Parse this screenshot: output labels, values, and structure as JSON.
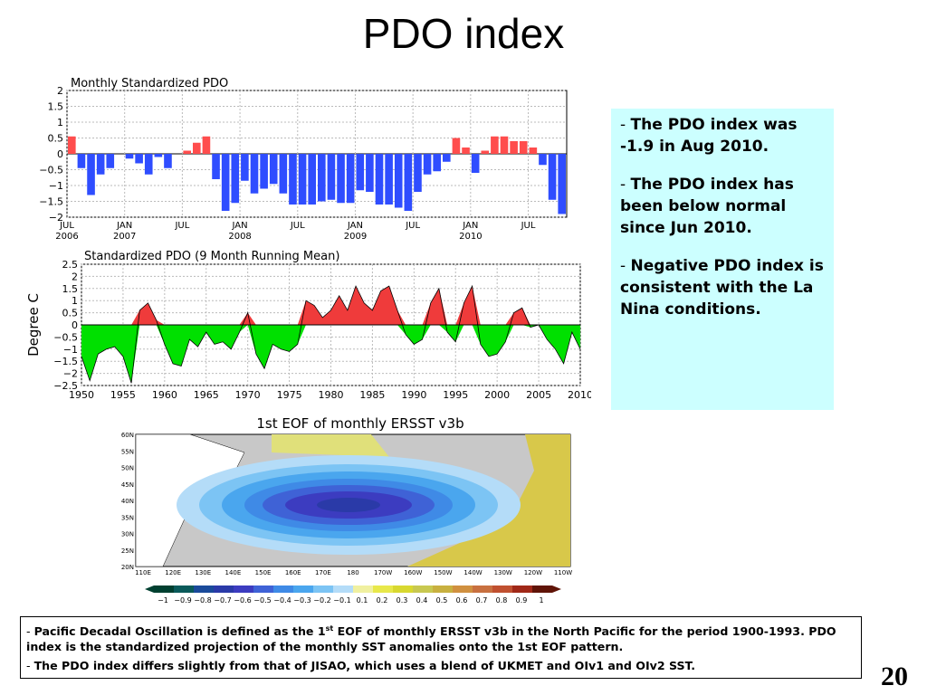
{
  "slide": {
    "title": "PDO index",
    "page_number": "20"
  },
  "info": {
    "items": [
      "The PDO index was -1.9 in Aug 2010.",
      "The PDO index has been below normal since Jun 2010.",
      "Negative PDO index is consistent with the La Nina conditions."
    ]
  },
  "footer": {
    "line1_pre": "Pacific Decadal Oscillation is defined as the 1",
    "line1_sup": "st",
    "line1_post": " EOF of monthly ERSST v3b in the North Pacific for the period 1900-1993. PDO index is the standardized projection of the monthly SST anomalies onto  the 1st EOF pattern.",
    "line2": "The PDO index differs slightly from that of JISAO, which uses a blend of UKMET and OIv1 and OIv2 SST."
  },
  "colors": {
    "positive": "#ff4d4d",
    "negative": "#2f4dff",
    "positive_fill": "#ef3b3b",
    "negative_fill": "#00e000",
    "box_bg": "#ccffff"
  },
  "chart_data": [
    {
      "type": "bar",
      "title": "Monthly Standardized PDO",
      "ylim": [
        -2,
        2
      ],
      "yticks": [
        "2",
        "1.5",
        "1",
        "0.5",
        "0",
        "−0.5",
        "−1",
        "−1.5",
        "−2"
      ],
      "xtick_labels": [
        {
          "month": "JUL",
          "year": "2006"
        },
        {
          "month": "JAN",
          "year": "2007"
        },
        {
          "month": "JUL",
          "year": ""
        },
        {
          "month": "JAN",
          "year": "2008"
        },
        {
          "month": "JUL",
          "year": ""
        },
        {
          "month": "JAN",
          "year": "2009"
        },
        {
          "month": "JUL",
          "year": ""
        },
        {
          "month": "JAN",
          "year": "2010"
        },
        {
          "month": "JUL",
          "year": ""
        }
      ],
      "values": [
        0.55,
        -0.45,
        -1.3,
        -0.65,
        -0.45,
        0,
        -0.15,
        -0.3,
        -0.65,
        -0.1,
        -0.45,
        0,
        0.1,
        0.35,
        0.55,
        -0.8,
        -1.8,
        -1.55,
        -0.85,
        -1.25,
        -1.1,
        -0.95,
        -1.25,
        -1.6,
        -1.6,
        -1.6,
        -1.5,
        -1.45,
        -1.55,
        -1.55,
        -1.15,
        -1.2,
        -1.6,
        -1.6,
        -1.7,
        -1.8,
        -1.2,
        -0.65,
        -0.55,
        -0.25,
        0.5,
        0.2,
        -0.6,
        0.1,
        0.55,
        0.55,
        0.4,
        0.4,
        0.2,
        -0.35,
        -1.45,
        -1.9
      ]
    },
    {
      "type": "area",
      "title": "Standardized PDO (9 Month Running Mean)",
      "ylabel": "Degree  C",
      "ylim": [
        -2.5,
        2.5
      ],
      "yticks": [
        "2.5",
        "2",
        "1.5",
        "1",
        "0.5",
        "0",
        "−0.5",
        "−1",
        "−1.5",
        "−2",
        "−2.5"
      ],
      "x": [
        1950,
        1951,
        1952,
        1953,
        1954,
        1955,
        1956,
        1957,
        1958,
        1959,
        1960,
        1961,
        1962,
        1963,
        1964,
        1965,
        1966,
        1967,
        1968,
        1969,
        1970,
        1971,
        1972,
        1973,
        1974,
        1975,
        1976,
        1977,
        1978,
        1979,
        1980,
        1981,
        1982,
        1983,
        1984,
        1985,
        1986,
        1987,
        1988,
        1989,
        1990,
        1991,
        1992,
        1993,
        1994,
        1995,
        1996,
        1997,
        1998,
        1999,
        2000,
        2001,
        2002,
        2003,
        2004,
        2005,
        2006,
        2007,
        2008,
        2009,
        2010
      ],
      "values": [
        -1.3,
        -2.3,
        -1.2,
        -1.0,
        -0.9,
        -1.3,
        -2.4,
        0.6,
        0.9,
        0.2,
        -0.8,
        -1.6,
        -1.7,
        -0.6,
        -0.9,
        -0.3,
        -0.8,
        -0.7,
        -1.0,
        -0.3,
        0.5,
        -1.2,
        -1.8,
        -0.8,
        -1.0,
        -1.1,
        -0.8,
        1.0,
        0.8,
        0.3,
        0.6,
        1.2,
        0.6,
        1.6,
        0.9,
        0.6,
        1.4,
        1.6,
        0.6,
        -0.4,
        -0.8,
        -0.6,
        0.9,
        1.5,
        -0.3,
        -0.7,
        0.9,
        1.6,
        -0.8,
        -1.3,
        -1.2,
        -0.7,
        0.5,
        0.7,
        -0.1,
        0.0,
        -0.6,
        -1.0,
        -1.6,
        -0.3,
        -1.0
      ],
      "xtick_labels": [
        "1950",
        "1955",
        "1960",
        "1965",
        "1970",
        "1975",
        "1980",
        "1985",
        "1990",
        "1995",
        "2000",
        "2005",
        "2010"
      ]
    },
    {
      "type": "heatmap",
      "title": "1st EOF of monthly ERSST v3b",
      "lat_labels": [
        "60N",
        "55N",
        "50N",
        "45N",
        "40N",
        "35N",
        "30N",
        "25N",
        "20N"
      ],
      "lon_labels": [
        "110E",
        "120E",
        "130E",
        "140E",
        "150E",
        "160E",
        "170E",
        "180",
        "170W",
        "160W",
        "150W",
        "140W",
        "130W",
        "120W",
        "110W"
      ],
      "colorbar_labels": [
        "−1",
        "−0.9",
        "−0.8",
        "−0.7",
        "−0.6",
        "−0.5",
        "−0.4",
        "−0.3",
        "−0.2",
        "−0.1",
        "0.1",
        "0.2",
        "0.3",
        "0.4",
        "0.5",
        "0.6",
        "0.7",
        "0.8",
        "0.9",
        "1"
      ],
      "colorbar_colors": [
        "#004030",
        "#0a5a5a",
        "#1a4a9a",
        "#2a3aa8",
        "#3c3cc0",
        "#3f62d6",
        "#3f8ae6",
        "#4aa6ee",
        "#7cc4f4",
        "#b4dcf8",
        "#f0f0a0",
        "#e8e84a",
        "#d8d830",
        "#c8c850",
        "#c8b040",
        "#d09040",
        "#c87040",
        "#c05030",
        "#a02818",
        "#601408"
      ]
    }
  ]
}
